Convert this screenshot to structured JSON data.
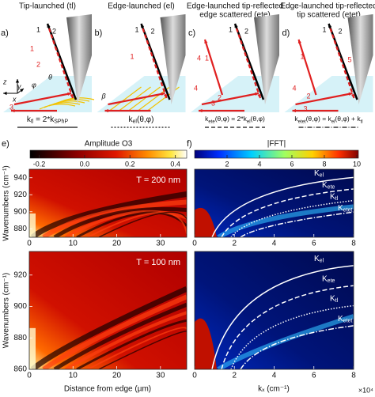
{
  "panels": [
    {
      "letter": "a)",
      "title": [
        "Tip-launched (tl)"
      ],
      "formula": [
        "k",
        "tl",
        " = 2*k",
        "SPhP"
      ],
      "labels": [
        "1",
        "2",
        "1",
        "2",
        "3",
        "θ",
        "φ",
        "x",
        "y",
        "z"
      ]
    },
    {
      "letter": "b)",
      "title": [
        "Edge-launched (el)"
      ],
      "formula": [
        "k",
        "el",
        "(θ,φ)"
      ],
      "labels": [
        "1",
        "2",
        "1",
        "β"
      ]
    },
    {
      "letter": "c)",
      "title": [
        "Edge-launched  tip-reflected",
        "edge scattered (ete)"
      ],
      "formula": [
        "k",
        "ete",
        "(θ,φ) = 2*k",
        "el",
        "(θ,φ)"
      ],
      "labels": [
        "1",
        "2",
        "4",
        "1",
        "2",
        "3",
        "4"
      ]
    },
    {
      "letter": "d)",
      "title": [
        "Edge-launched tip-reflected",
        "tip scattered (etet)"
      ],
      "formula": [
        "k",
        "etet",
        "(θ,φ) = k",
        "el",
        "(θ,φ) + k",
        "tl"
      ],
      "labels": [
        "1",
        "2",
        "5",
        "1",
        "2",
        "3",
        "4"
      ]
    }
  ],
  "e": {
    "letter": "e)",
    "colorbar": {
      "label": "Amplitude O3",
      "lim": [
        -0.24,
        0.45
      ],
      "ticks": [
        -0.2,
        {
          "value": 0,
          "label": "0.0"
        },
        0.2,
        0.4
      ]
    },
    "xlabel": "Distance from edge (µm)",
    "plots": [
      {
        "annotation": "T = 200 nm",
        "ylabel": "Wavenumbers (cm⁻¹)",
        "xlim": [
          0,
          36
        ],
        "xticks": [
          0,
          10,
          20,
          30
        ],
        "ylim": [
          870,
          950
        ],
        "yticks": [
          880,
          900,
          920,
          940
        ]
      },
      {
        "annotation": "T = 100 nm",
        "ylabel": "Wavenumbers (cm⁻¹)",
        "xlim": [
          0,
          36
        ],
        "xticks": [
          0,
          10,
          20,
          30
        ],
        "ylim": [
          860,
          935
        ],
        "yticks": [
          860,
          880,
          900,
          920
        ]
      }
    ]
  },
  "f": {
    "letter": "f)",
    "colorbar": {
      "label": "|FFT|",
      "lim": [
        0,
        10.1
      ],
      "ticks": [
        2,
        4,
        6,
        8,
        10
      ]
    },
    "xlabel": "kₓ (cm⁻¹)",
    "xscale": "×10⁴",
    "curves": [
      [
        "K",
        "el"
      ],
      [
        "K",
        "ete"
      ],
      [
        "K",
        "tl"
      ],
      [
        "K",
        "etet"
      ]
    ],
    "plots": [
      {
        "xlim": [
          0,
          8
        ],
        "xticks": [
          0,
          2,
          4,
          6,
          8
        ],
        "ylim": [
          870,
          950
        ]
      },
      {
        "xlim": [
          0,
          8
        ],
        "xticks": [
          0,
          2,
          4,
          6,
          8
        ],
        "ylim": [
          860,
          935
        ]
      }
    ]
  }
}
